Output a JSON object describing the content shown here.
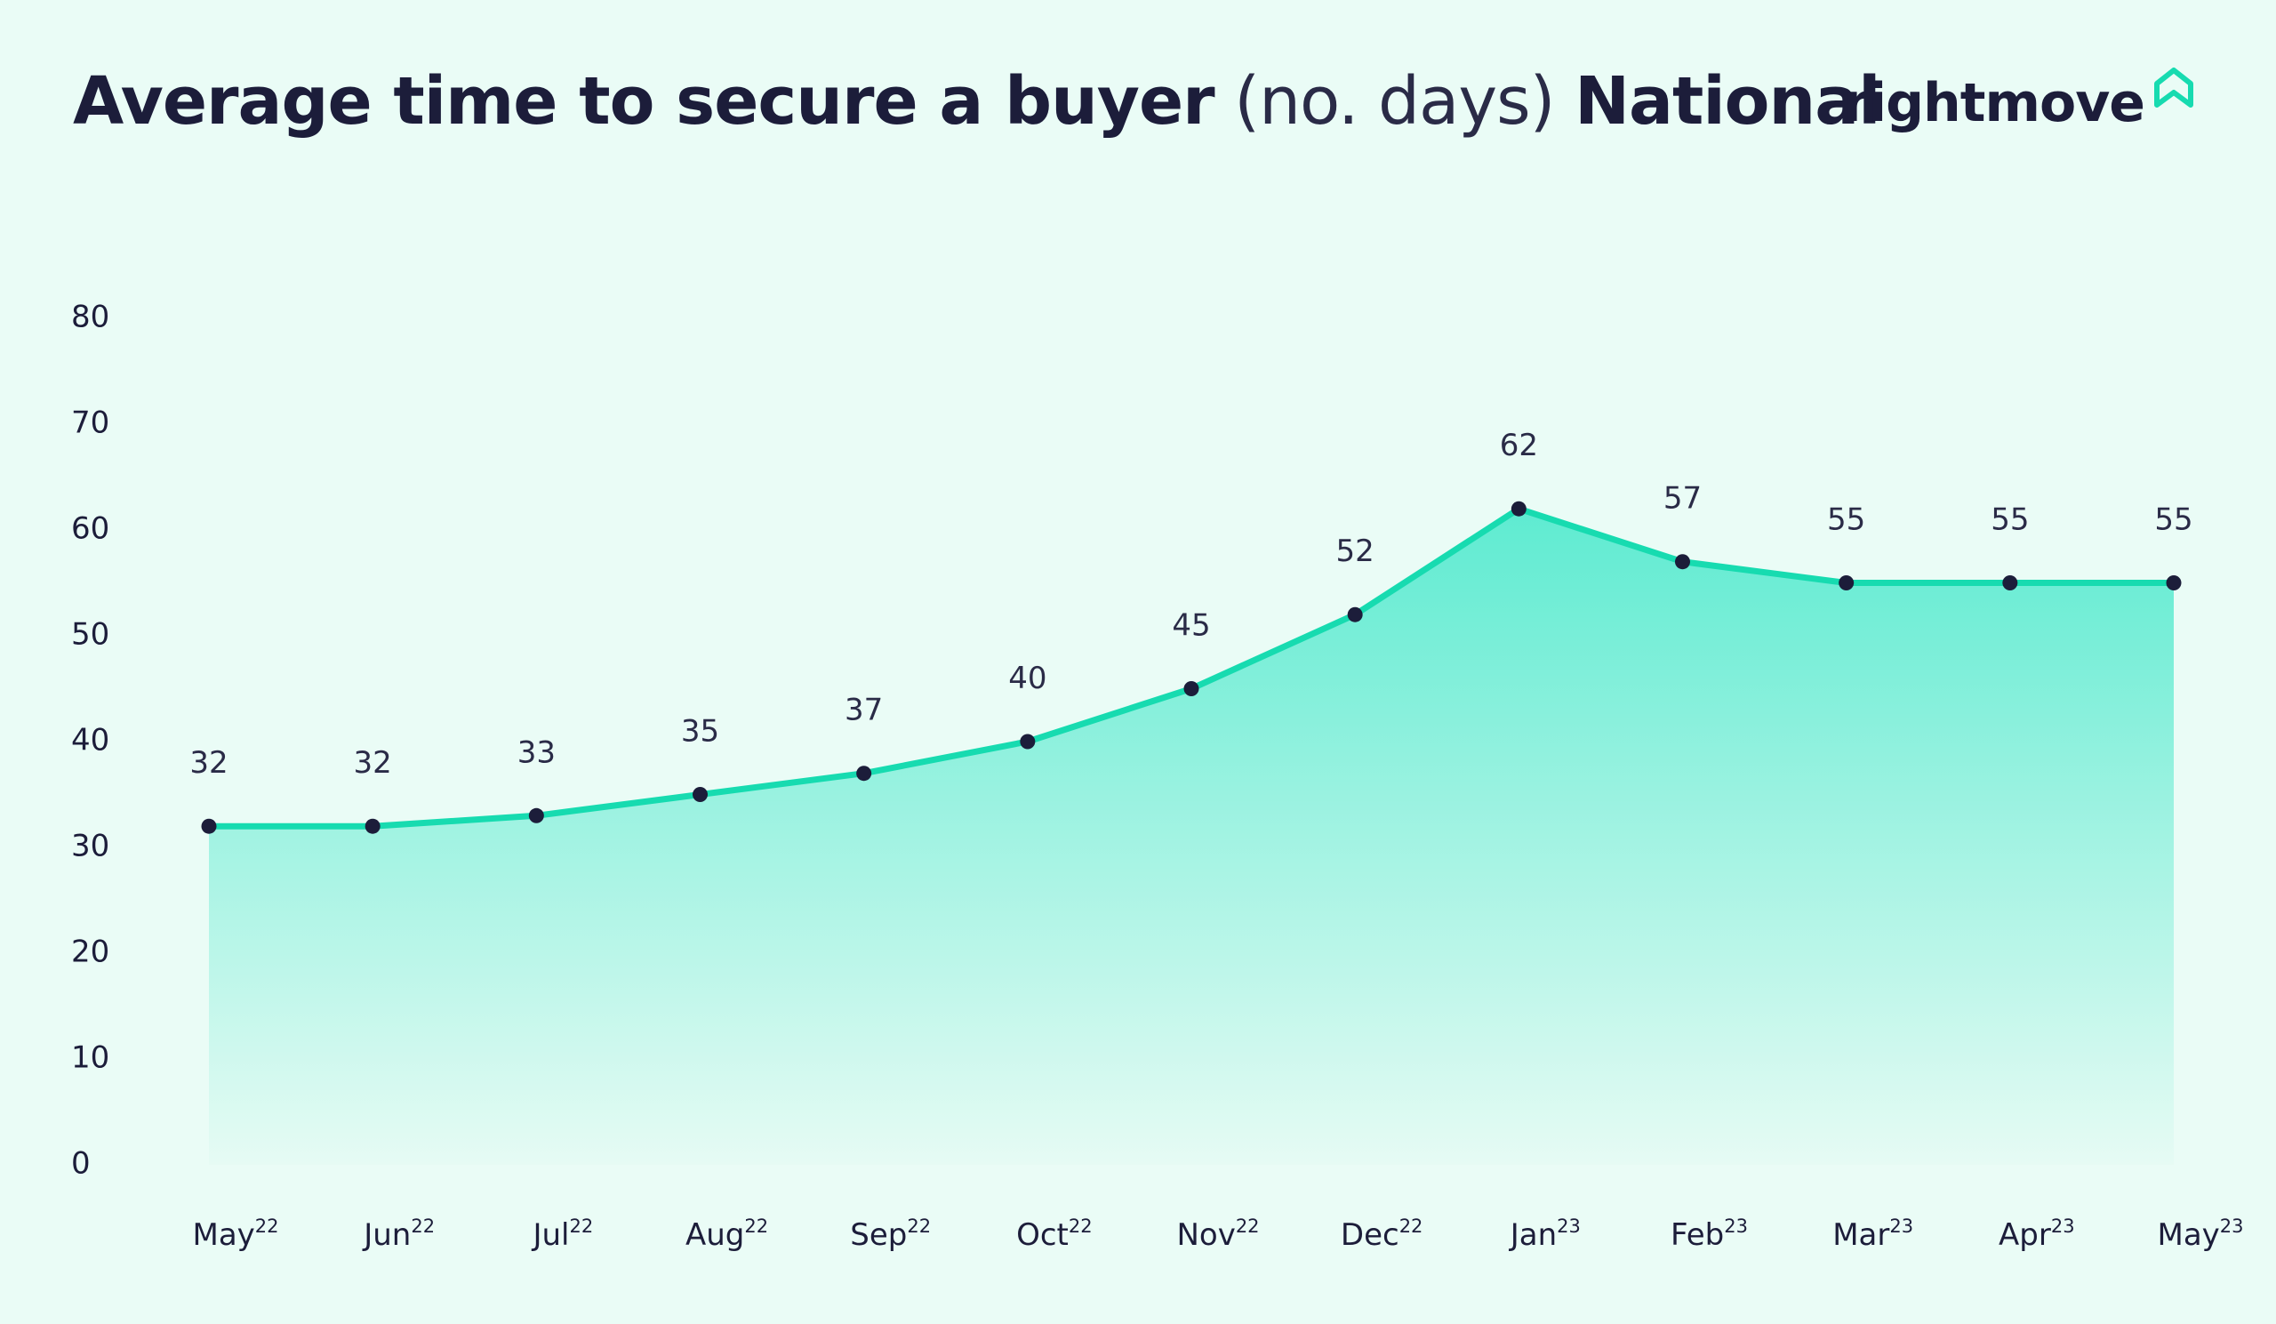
{
  "title": {
    "part1": "Average time to secure a buyer",
    "part2": "(no. days)",
    "part3": "National"
  },
  "brand": {
    "name": "rightmove",
    "icon": "house-outline-icon"
  },
  "colors": {
    "background": "#eafcf6",
    "line": "#17dbb0",
    "marker": "#1c1d3a",
    "text": "#1c1d3a",
    "fill_top": "#5eebd1",
    "fill_bottom": "#e6fbf4"
  },
  "chart_data": {
    "type": "area",
    "title": "Average time to secure a buyer (no. days) National",
    "categories": [
      "May",
      "Jun",
      "Jul",
      "Aug",
      "Sep",
      "Oct",
      "Nov",
      "Dec",
      "Jan",
      "Feb",
      "Mar",
      "Apr",
      "May"
    ],
    "category_years": [
      "22",
      "22",
      "22",
      "22",
      "22",
      "22",
      "22",
      "22",
      "23",
      "23",
      "23",
      "23",
      "23"
    ],
    "series": [
      {
        "values": [
          32,
          32,
          33,
          35,
          37,
          40,
          45,
          52,
          62,
          57,
          55,
          55,
          55
        ]
      }
    ],
    "ylim": [
      0,
      80
    ],
    "yticks": [
      0,
      10,
      20,
      30,
      40,
      50,
      60,
      70,
      80
    ],
    "grid": false,
    "legend": "none",
    "data_labels": true
  }
}
